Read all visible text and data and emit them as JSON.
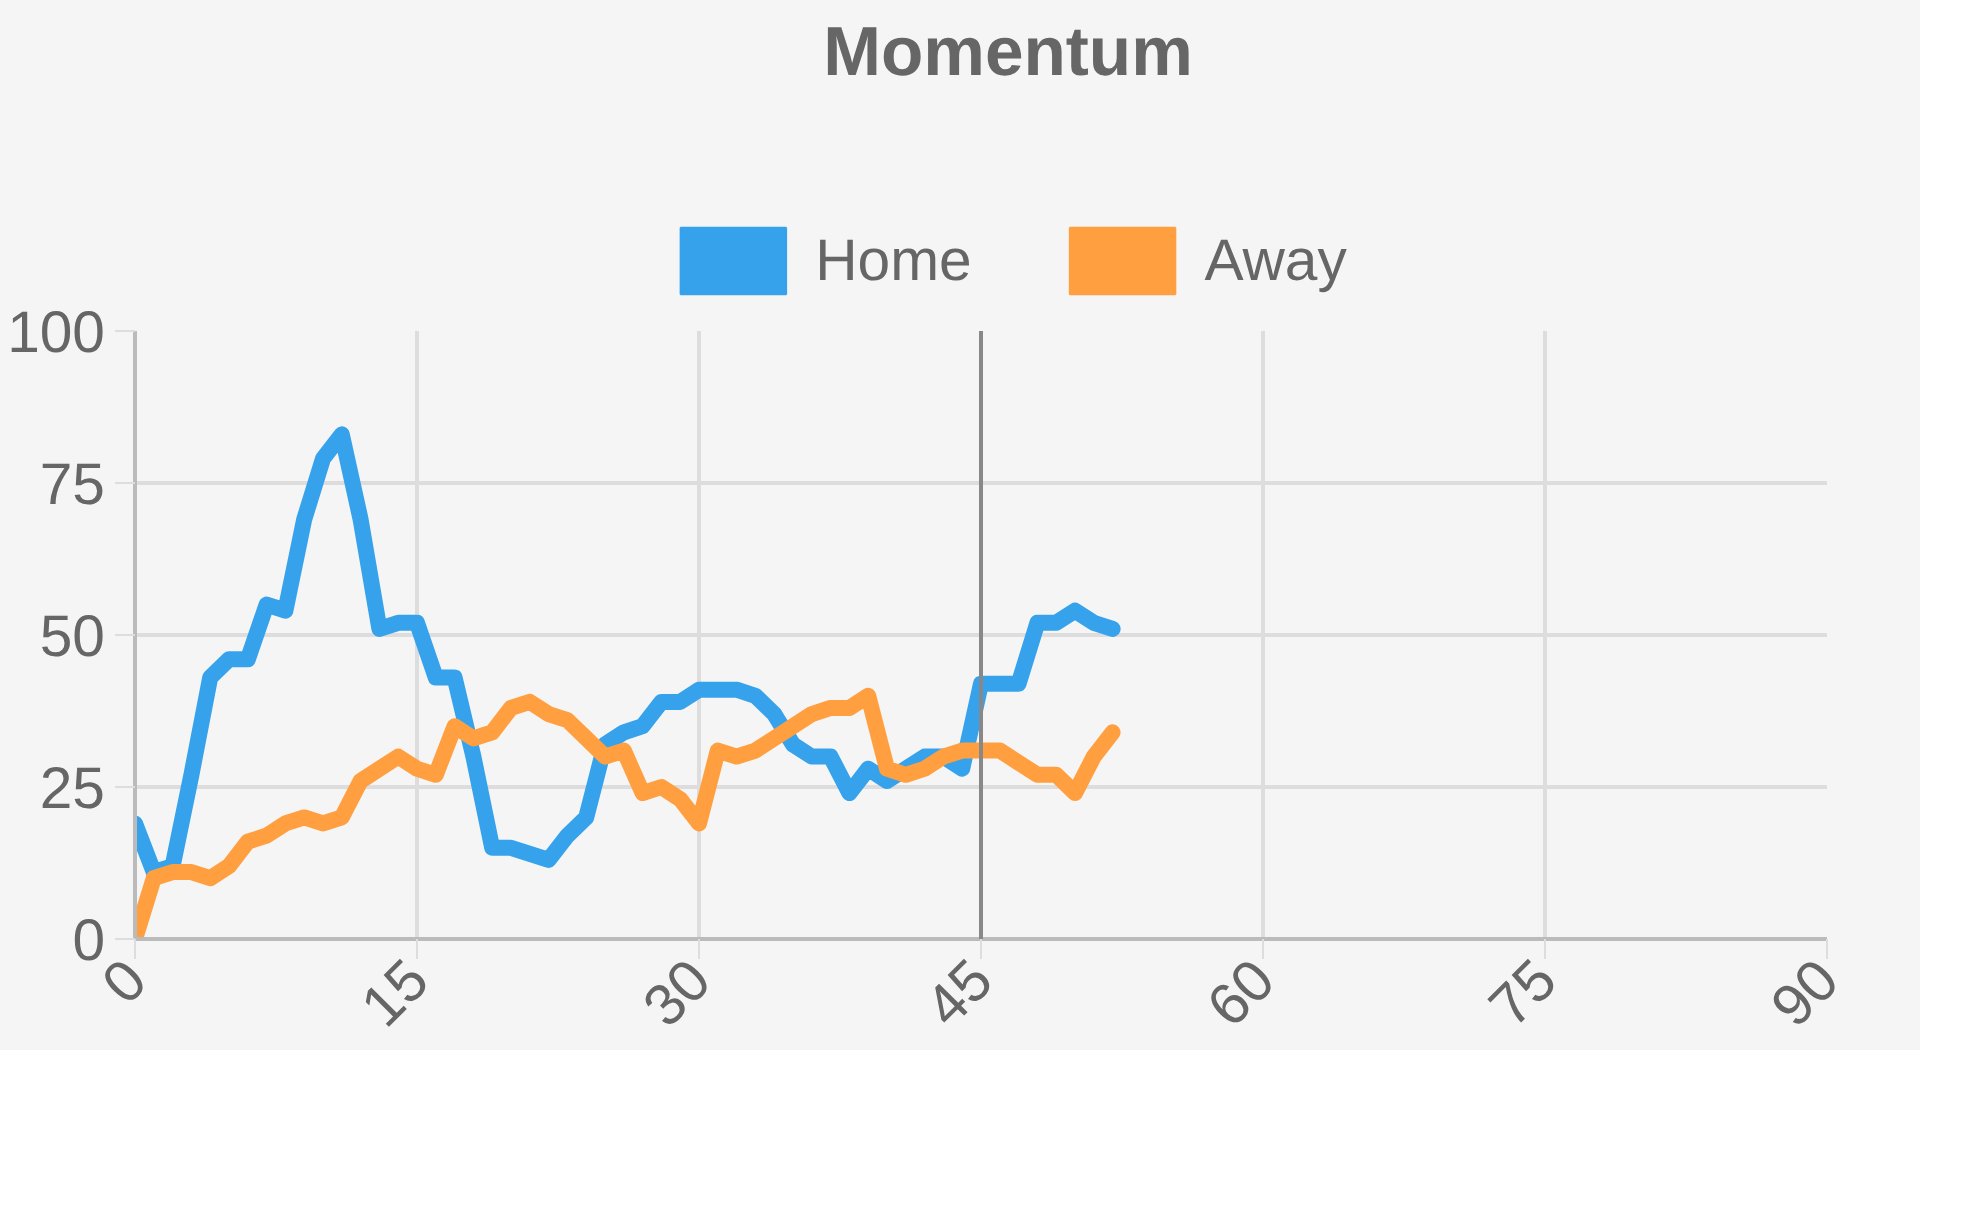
{
  "chart_data": {
    "type": "line",
    "title": "Momentum",
    "x": [
      0,
      1,
      2,
      3,
      4,
      5,
      6,
      7,
      8,
      9,
      10,
      11,
      12,
      13,
      14,
      15,
      16,
      17,
      18,
      19,
      20,
      21,
      22,
      23,
      24,
      25,
      26,
      27,
      28,
      29,
      30,
      31,
      32,
      33,
      34,
      35,
      36,
      37,
      38,
      39,
      40,
      41,
      42,
      43,
      44,
      45,
      46,
      47,
      48,
      49,
      50,
      51,
      52
    ],
    "series": [
      {
        "name": "Home",
        "color": "#36a2eb",
        "values": [
          19,
          11,
          12,
          27,
          43,
          46,
          46,
          55,
          54,
          69,
          79,
          83,
          69,
          51,
          52,
          52,
          43,
          43,
          30,
          15,
          15,
          14,
          13,
          17,
          20,
          32,
          34,
          35,
          39,
          39,
          41,
          41,
          41,
          40,
          37,
          32,
          30,
          30,
          24,
          28,
          26,
          28,
          30,
          30,
          28,
          42,
          42,
          42,
          52,
          52,
          54,
          52,
          51
        ]
      },
      {
        "name": "Away",
        "color": "#ff9f40",
        "values": [
          0,
          10,
          11,
          11,
          10,
          12,
          16,
          17,
          19,
          20,
          19,
          20,
          26,
          28,
          30,
          28,
          27,
          35,
          33,
          34,
          38,
          39,
          37,
          36,
          33,
          30,
          31,
          24,
          25,
          23,
          19,
          31,
          30,
          31,
          33,
          35,
          37,
          38,
          38,
          40,
          28,
          27,
          28,
          30,
          31,
          31,
          31,
          29,
          27,
          27,
          24,
          30,
          34
        ]
      }
    ],
    "xlim": [
      0,
      90
    ],
    "xticks": [
      0,
      15,
      30,
      45,
      60,
      75,
      90
    ],
    "ylim": [
      0,
      100
    ],
    "yticks": [
      0,
      25,
      50,
      75,
      100
    ],
    "ref_lines": [
      {
        "axis": "x",
        "value": 45,
        "label": null,
        "color": "#888888"
      }
    ],
    "grid": true,
    "legend": "top",
    "marker": "none",
    "line_style": "solid"
  }
}
